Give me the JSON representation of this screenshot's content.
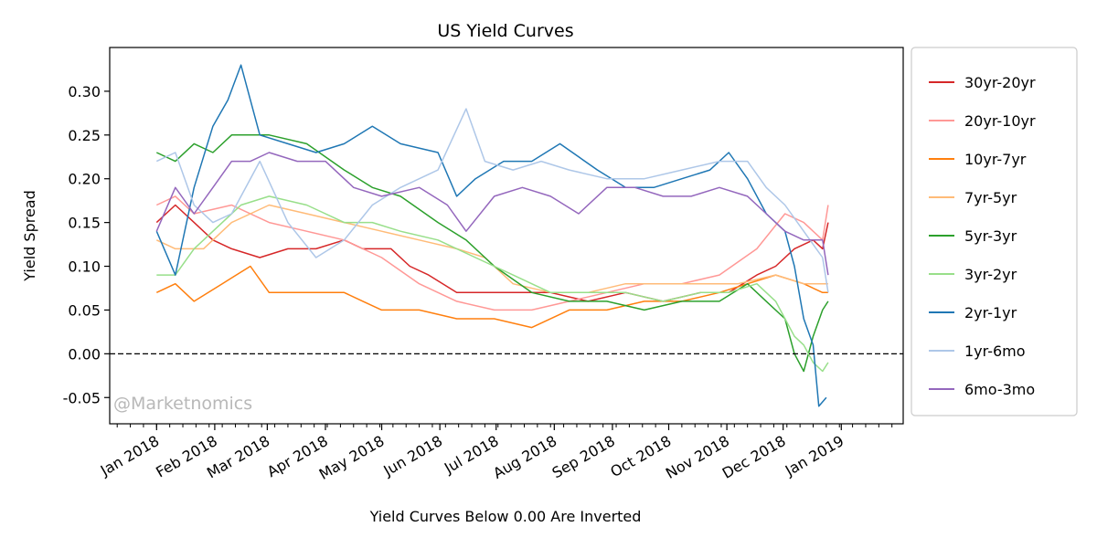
{
  "chart_data": {
    "type": "line",
    "title": "US Yield Curves",
    "xlabel": "Yield Curves Below 0.00 Are Inverted",
    "ylabel": "Yield Spread",
    "watermark": "@Marketnomics",
    "x_start": "2018-01-01",
    "x_end": "2019-01-01",
    "xlim": [
      -25,
      398
    ],
    "ylim": [
      -0.08,
      0.35
    ],
    "yticks": [
      -0.05,
      0.0,
      0.05,
      0.1,
      0.15,
      0.2,
      0.25,
      0.3
    ],
    "ytick_labels": [
      "-0.05",
      "0.00",
      "0.05",
      "0.10",
      "0.15",
      "0.20",
      "0.25",
      "0.30"
    ],
    "xticks": [
      0,
      31,
      59,
      90,
      120,
      151,
      181,
      212,
      243,
      273,
      304,
      334,
      365
    ],
    "xtick_labels": [
      "Jan 2018",
      "Feb 2018",
      "Mar 2018",
      "Apr 2018",
      "May 2018",
      "Jun 2018",
      "Jul 2018",
      "Aug 2018",
      "Sep 2018",
      "Oct 2018",
      "Nov 2018",
      "Dec 2018",
      "Jan 2019"
    ],
    "reference_line": {
      "y": 0.0,
      "style": "dashed",
      "color": "#000000"
    },
    "legend_position": "outside-right",
    "series": [
      {
        "name": "30yr-20yr",
        "color": "#d62728",
        "x": [
          0,
          10,
          20,
          30,
          40,
          55,
          70,
          85,
          100,
          110,
          125,
          135,
          145,
          160,
          175,
          190,
          210,
          230,
          250,
          270,
          290,
          305,
          320,
          330,
          340,
          350,
          355,
          358
        ],
        "y": [
          0.15,
          0.17,
          0.15,
          0.13,
          0.12,
          0.11,
          0.12,
          0.12,
          0.13,
          0.12,
          0.12,
          0.1,
          0.09,
          0.07,
          0.07,
          0.07,
          0.07,
          0.06,
          0.07,
          0.06,
          0.07,
          0.07,
          0.09,
          0.1,
          0.12,
          0.13,
          0.12,
          0.15
        ]
      },
      {
        "name": "20yr-10yr",
        "color": "#ff9896",
        "x": [
          0,
          10,
          20,
          40,
          60,
          80,
          100,
          120,
          140,
          160,
          180,
          200,
          220,
          240,
          260,
          280,
          300,
          320,
          335,
          345,
          355,
          358
        ],
        "y": [
          0.17,
          0.18,
          0.16,
          0.17,
          0.15,
          0.14,
          0.13,
          0.11,
          0.08,
          0.06,
          0.05,
          0.05,
          0.06,
          0.07,
          0.08,
          0.08,
          0.09,
          0.12,
          0.16,
          0.15,
          0.13,
          0.17
        ]
      },
      {
        "name": "10yr-7yr",
        "color": "#ff7f0e",
        "x": [
          0,
          10,
          20,
          35,
          50,
          60,
          80,
          100,
          110,
          120,
          140,
          160,
          180,
          200,
          220,
          240,
          260,
          280,
          300,
          315,
          330,
          345,
          355,
          358
        ],
        "y": [
          0.07,
          0.08,
          0.06,
          0.08,
          0.1,
          0.07,
          0.07,
          0.07,
          0.06,
          0.05,
          0.05,
          0.04,
          0.04,
          0.03,
          0.05,
          0.05,
          0.06,
          0.06,
          0.07,
          0.08,
          0.09,
          0.08,
          0.07,
          0.07
        ]
      },
      {
        "name": "7yr-5yr",
        "color": "#ffbb78",
        "x": [
          0,
          10,
          25,
          40,
          60,
          80,
          100,
          120,
          140,
          160,
          175,
          190,
          210,
          230,
          250,
          270,
          290,
          310,
          330,
          345,
          355,
          358
        ],
        "y": [
          0.13,
          0.12,
          0.12,
          0.15,
          0.17,
          0.16,
          0.15,
          0.14,
          0.13,
          0.12,
          0.11,
          0.08,
          0.07,
          0.07,
          0.08,
          0.08,
          0.08,
          0.08,
          0.09,
          0.08,
          0.08,
          0.08
        ]
      },
      {
        "name": "5yr-3yr",
        "color": "#2ca02c",
        "x": [
          0,
          10,
          20,
          30,
          40,
          60,
          80,
          100,
          115,
          130,
          150,
          165,
          180,
          200,
          220,
          240,
          260,
          280,
          300,
          315,
          325,
          335,
          340,
          345,
          350,
          355,
          358
        ],
        "y": [
          0.23,
          0.22,
          0.24,
          0.23,
          0.25,
          0.25,
          0.24,
          0.21,
          0.19,
          0.18,
          0.15,
          0.13,
          0.1,
          0.07,
          0.06,
          0.06,
          0.05,
          0.06,
          0.06,
          0.08,
          0.06,
          0.04,
          0.0,
          -0.02,
          0.02,
          0.05,
          0.06
        ]
      },
      {
        "name": "3yr-2yr",
        "color": "#98df8a",
        "x": [
          0,
          10,
          20,
          30,
          45,
          60,
          80,
          100,
          115,
          130,
          150,
          170,
          190,
          210,
          230,
          250,
          270,
          290,
          305,
          320,
          330,
          340,
          345,
          350,
          355,
          358
        ],
        "y": [
          0.09,
          0.09,
          0.12,
          0.14,
          0.17,
          0.18,
          0.17,
          0.15,
          0.15,
          0.14,
          0.13,
          0.11,
          0.09,
          0.07,
          0.07,
          0.07,
          0.06,
          0.07,
          0.07,
          0.08,
          0.06,
          0.02,
          0.01,
          -0.01,
          -0.02,
          -0.01
        ]
      },
      {
        "name": "2yr-1yr",
        "color": "#1f77b4",
        "x": [
          0,
          10,
          20,
          30,
          38,
          45,
          55,
          70,
          85,
          100,
          115,
          130,
          150,
          160,
          170,
          185,
          200,
          215,
          235,
          250,
          265,
          280,
          295,
          305,
          315,
          325,
          335,
          340,
          345,
          350,
          353,
          357
        ],
        "y": [
          0.14,
          0.09,
          0.19,
          0.26,
          0.29,
          0.33,
          0.25,
          0.24,
          0.23,
          0.24,
          0.26,
          0.24,
          0.23,
          0.18,
          0.2,
          0.22,
          0.22,
          0.24,
          0.21,
          0.19,
          0.19,
          0.2,
          0.21,
          0.23,
          0.2,
          0.16,
          0.14,
          0.1,
          0.04,
          0.01,
          -0.06,
          -0.05
        ]
      },
      {
        "name": "1yr-6mo",
        "color": "#aec7e8",
        "x": [
          0,
          10,
          20,
          30,
          40,
          55,
          70,
          85,
          100,
          115,
          130,
          150,
          165,
          175,
          190,
          205,
          220,
          240,
          260,
          280,
          300,
          315,
          325,
          335,
          345,
          355,
          358
        ],
        "y": [
          0.22,
          0.23,
          0.17,
          0.15,
          0.16,
          0.22,
          0.15,
          0.11,
          0.13,
          0.17,
          0.19,
          0.21,
          0.28,
          0.22,
          0.21,
          0.22,
          0.21,
          0.2,
          0.2,
          0.21,
          0.22,
          0.22,
          0.19,
          0.17,
          0.14,
          0.11,
          0.07
        ]
      },
      {
        "name": "6mo-3mo",
        "color": "#9467bd",
        "x": [
          0,
          10,
          20,
          30,
          40,
          50,
          60,
          75,
          90,
          105,
          120,
          140,
          155,
          165,
          180,
          195,
          210,
          225,
          240,
          255,
          270,
          285,
          300,
          315,
          325,
          335,
          345,
          355,
          358
        ],
        "y": [
          0.14,
          0.19,
          0.16,
          0.19,
          0.22,
          0.22,
          0.23,
          0.22,
          0.22,
          0.19,
          0.18,
          0.19,
          0.17,
          0.14,
          0.18,
          0.19,
          0.18,
          0.16,
          0.19,
          0.19,
          0.18,
          0.18,
          0.19,
          0.18,
          0.16,
          0.14,
          0.13,
          0.13,
          0.09
        ]
      }
    ]
  }
}
